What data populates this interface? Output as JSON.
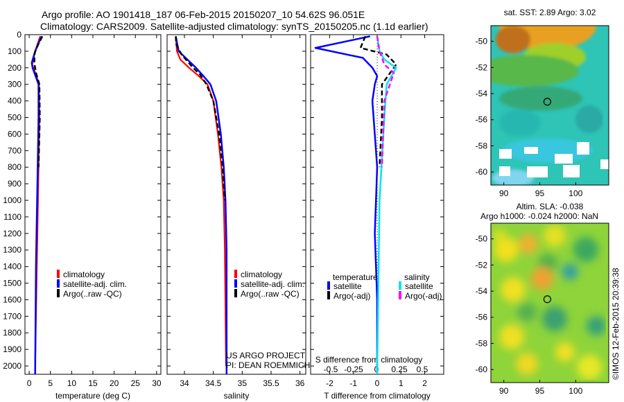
{
  "title": {
    "line1": "Argo profile: AO 1901418_187 06-Feb-2015 20150207_10 54.62S 96.051E",
    "line2": "Climatology: CARS2009. Satellite-adjusted climatology: synTS_20150205.nc (1.1d earlier)"
  },
  "credits": {
    "project": "US ARGO PROJECT",
    "pi": "PI: DEAN ROEMMICH",
    "stamp": "©IMOS 12-Feb-2015 20:39:38"
  },
  "colors": {
    "climatology": "#ff0000",
    "satellite": "#0000ff",
    "argo": "#000000",
    "sal_satellite": "#00e5ee",
    "sal_argo": "#ff00ff"
  },
  "chart_data": [
    {
      "type": "line",
      "xlabel": "temperature (deg C)",
      "xlim": [
        -1,
        31
      ],
      "ylim": [
        2050,
        0
      ],
      "xticks": [
        0,
        5,
        10,
        15,
        20,
        25,
        30
      ],
      "yticks": [
        0,
        100,
        200,
        300,
        400,
        500,
        600,
        700,
        800,
        900,
        1000,
        1100,
        1200,
        1300,
        1400,
        1500,
        1600,
        1700,
        1800,
        1900,
        2000
      ],
      "legend": [
        "climatology",
        "satellite-adj. clim.",
        "Argo(..raw -QC)"
      ],
      "series": [
        {
          "name": "climatology",
          "x": [
            2.6,
            1.4,
            0.7,
            1.7,
            2.3,
            2.4,
            2.2,
            2.0,
            1.8,
            1.6,
            1.4
          ],
          "y": [
            10,
            100,
            180,
            250,
            300,
            500,
            800,
            1100,
            1400,
            1700,
            2000
          ]
        },
        {
          "name": "satellite-adj. clim.",
          "x": [
            2.9,
            1.4,
            0.6,
            0.8,
            1.5,
            2.2,
            2.2,
            2.0,
            1.8,
            1.6,
            1.4
          ],
          "y": [
            10,
            100,
            170,
            200,
            250,
            300,
            500,
            800,
            1100,
            1400,
            2050
          ]
        },
        {
          "name": "Argo(..raw -QC)",
          "x": [
            3.1,
            2.1,
            1.3,
            1.2,
            1.6,
            2.4,
            2.5,
            2.2
          ],
          "y": [
            10,
            60,
            110,
            170,
            230,
            300,
            500,
            800
          ]
        }
      ]
    },
    {
      "type": "line",
      "xlabel": "salinity",
      "xlim": [
        33.7,
        36.1
      ],
      "ylim": [
        2050,
        0
      ],
      "xticks": [
        34,
        34.5,
        35,
        35.5,
        36
      ],
      "legend": [
        "climatology",
        "satellite-adj. clim.",
        "Argo(..raw -QC)"
      ],
      "series": [
        {
          "name": "climatology",
          "x": [
            33.85,
            33.87,
            33.93,
            34.08,
            34.25,
            34.4,
            34.5,
            34.58,
            34.64,
            34.68,
            34.7,
            34.72
          ],
          "y": [
            10,
            100,
            150,
            200,
            250,
            300,
            400,
            600,
            800,
            1000,
            1300,
            2000
          ]
        },
        {
          "name": "satellite-adj. clim.",
          "x": [
            33.85,
            33.9,
            34.05,
            34.2,
            34.33,
            34.45,
            34.55,
            34.63,
            34.68,
            34.71,
            34.73,
            34.73
          ],
          "y": [
            10,
            100,
            150,
            200,
            250,
            300,
            400,
            600,
            800,
            1000,
            1300,
            2050
          ]
        },
        {
          "name": "Argo(..raw -QC)",
          "x": [
            33.85,
            33.86,
            33.95,
            34.15,
            34.27,
            34.38,
            34.5,
            34.6,
            34.66,
            34.7
          ],
          "y": [
            10,
            60,
            120,
            200,
            240,
            300,
            400,
            600,
            800,
            1000
          ]
        }
      ]
    },
    {
      "type": "line",
      "xlabel": "T difference from climatology",
      "toplabel": "S difference from climatology",
      "xlim": [
        -2.8,
        2.8
      ],
      "ylim": [
        2050,
        0
      ],
      "xticks": [
        -2,
        -1,
        0,
        1,
        2
      ],
      "topticks": [
        "-0.5",
        "-0.25",
        "0",
        "0.25",
        "0.5"
      ],
      "legend_groups": [
        "temperature",
        "salinity"
      ],
      "legend": [
        "satellite",
        "Argo(-adj)",
        "satellite",
        "Argo(-adj)"
      ],
      "series": [
        {
          "name": "temperature satellite",
          "x": [
            -0.3,
            -2.6,
            -0.6,
            -0.2,
            0.0,
            -0.1,
            -0.2,
            0.0,
            -0.1,
            0.0,
            0.0
          ],
          "y": [
            10,
            80,
            140,
            200,
            250,
            300,
            400,
            800,
            1200,
            1600,
            2050
          ]
        },
        {
          "name": "temperature Argo(-adj)",
          "x": [
            -0.5,
            -0.7,
            0.4,
            0.8,
            0.2,
            0.2,
            0.1
          ],
          "y": [
            10,
            80,
            120,
            180,
            300,
            500,
            800
          ]
        },
        {
          "name": "salinity satellite",
          "x": [
            0.0,
            0.1,
            0.3,
            0.8,
            0.4,
            0.3,
            0.1,
            0.0
          ],
          "y": [
            10,
            100,
            150,
            200,
            300,
            500,
            1000,
            2050
          ]
        },
        {
          "name": "salinity Argo(-adj)",
          "x": [
            0.0,
            0.1,
            0.3,
            0.7,
            0.3,
            0.2
          ],
          "y": [
            10,
            100,
            180,
            230,
            400,
            800
          ]
        }
      ]
    },
    {
      "type": "heatmap",
      "title": "sat. SST: 2.89 Argo: 3.02",
      "xlim": [
        88.2,
        104.6
      ],
      "ylim": [
        -61,
        -48.8
      ],
      "xticks": [
        90,
        95,
        100
      ],
      "yticks": [
        -50,
        -52,
        -54,
        -56,
        -58,
        -60
      ],
      "argo_position": [
        96.051,
        -54.62
      ]
    },
    {
      "type": "heatmap",
      "title": "Altim. SLA: -0.038",
      "subtitle": "Argo h1000: -0.024 h2000: NaN",
      "xlim": [
        88.2,
        104.6
      ],
      "ylim": [
        -61,
        -48.8
      ],
      "xticks": [
        90,
        95,
        100
      ],
      "yticks": [
        -50,
        -52,
        -54,
        -56,
        -58,
        -60
      ],
      "argo_position": [
        96.051,
        -54.62
      ]
    }
  ]
}
